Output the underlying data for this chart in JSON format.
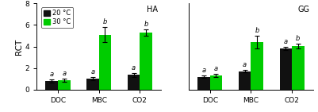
{
  "panels": [
    {
      "label": "HA",
      "categories": [
        "DOC",
        "MBC",
        "CO2"
      ],
      "black_vals": [
        0.8,
        1.0,
        1.35
      ],
      "green_vals": [
        0.9,
        5.1,
        5.3
      ],
      "black_errs": [
        0.15,
        0.15,
        0.2
      ],
      "green_errs": [
        0.15,
        0.7,
        0.3
      ],
      "black_labels": [
        "a",
        "a",
        "a"
      ],
      "green_labels": [
        "a",
        "b",
        "b"
      ],
      "show_ylabel": true,
      "show_legend": true
    },
    {
      "label": "GG",
      "categories": [
        "DOC",
        "MBC",
        "CO2"
      ],
      "black_vals": [
        1.2,
        1.7,
        3.8
      ],
      "green_vals": [
        1.3,
        4.4,
        4.05
      ],
      "black_errs": [
        0.1,
        0.12,
        0.15
      ],
      "green_errs": [
        0.15,
        0.6,
        0.2
      ],
      "black_labels": [
        "a",
        "a",
        "a"
      ],
      "green_labels": [
        "a",
        "b",
        "b"
      ],
      "show_ylabel": false,
      "show_legend": false
    }
  ],
  "ylim": [
    0,
    8
  ],
  "yticks": [
    0,
    2,
    4,
    6,
    8
  ],
  "bar_width": 0.3,
  "black_color": "#111111",
  "green_color": "#00cc00",
  "ylabel": "RCT",
  "legend_labels": [
    "20 °C",
    "30 °C"
  ],
  "figsize": [
    4.01,
    1.41
  ],
  "dpi": 100
}
